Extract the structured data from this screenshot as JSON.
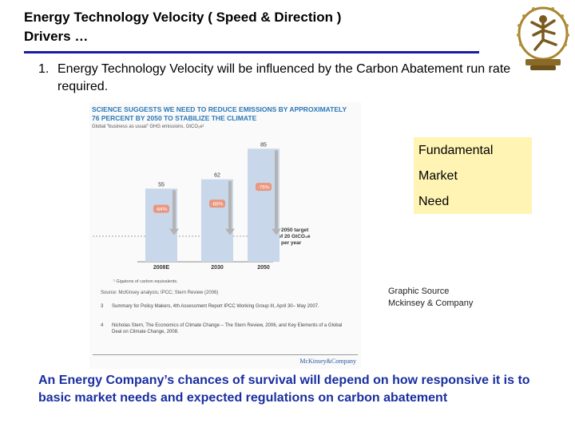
{
  "title_lines": [
    "Energy Technology Velocity ( Speed & Direction )",
    "Drivers …"
  ],
  "point": {
    "number": "1.",
    "text": "Energy Technology Velocity will be influenced by the Carbon Abatement run rate required."
  },
  "figure": {
    "headline": "Science suggests we need to reduce emissions by approximately 76 percent by 2050 to stabilize the climate",
    "subtitle": "Global “business as usual” GHG emissions, GtCO₂e¹",
    "target_label": [
      "2050 target",
      "of 20 GtCO₂e",
      "per year"
    ],
    "footnote": "¹ Gigatons of carbon equivalents.",
    "source": "Source: McKinsey analysis; IPCC; Stern Review (2006)",
    "references": [
      {
        "n": "3",
        "text": "Summary for Policy Makers, 4th Assessment Report IPCC Working Group III, April 30– May 2007."
      },
      {
        "n": "4",
        "text": "Nicholas Stern, The Economics of Climate Change – The Stern Review, 2006, and Key Elements of a Global Deal on Climate Change, 2008."
      }
    ],
    "brand": "McKinsey&Company"
  },
  "chart_data": {
    "type": "bar",
    "title": "Science suggests we need to reduce emissions by approximately 76 percent by 2050 to stabilize the climate",
    "ylabel": "Global “business as usual” GHG emissions, GtCO₂e",
    "categories": [
      "2008E",
      "2030",
      "2050"
    ],
    "values": [
      55,
      62,
      85
    ],
    "reductions": [
      "-64%",
      "-68%",
      "-76%"
    ],
    "target": 20,
    "ylim": [
      0,
      90
    ],
    "colors": {
      "bar": "#c9d7ea",
      "arrow": "#b3b3b3",
      "badge": "#f08a6a",
      "value": "#333333"
    }
  },
  "callout": [
    "Fundamental",
    "Market",
    "Need"
  ],
  "graphic_source": [
    "Graphic Source",
    "Mckinsey & Company"
  ],
  "conclusion": "An Energy Company’s chances of survival will depend on how responsive it is to basic market needs and expected regulations on carbon abatement"
}
